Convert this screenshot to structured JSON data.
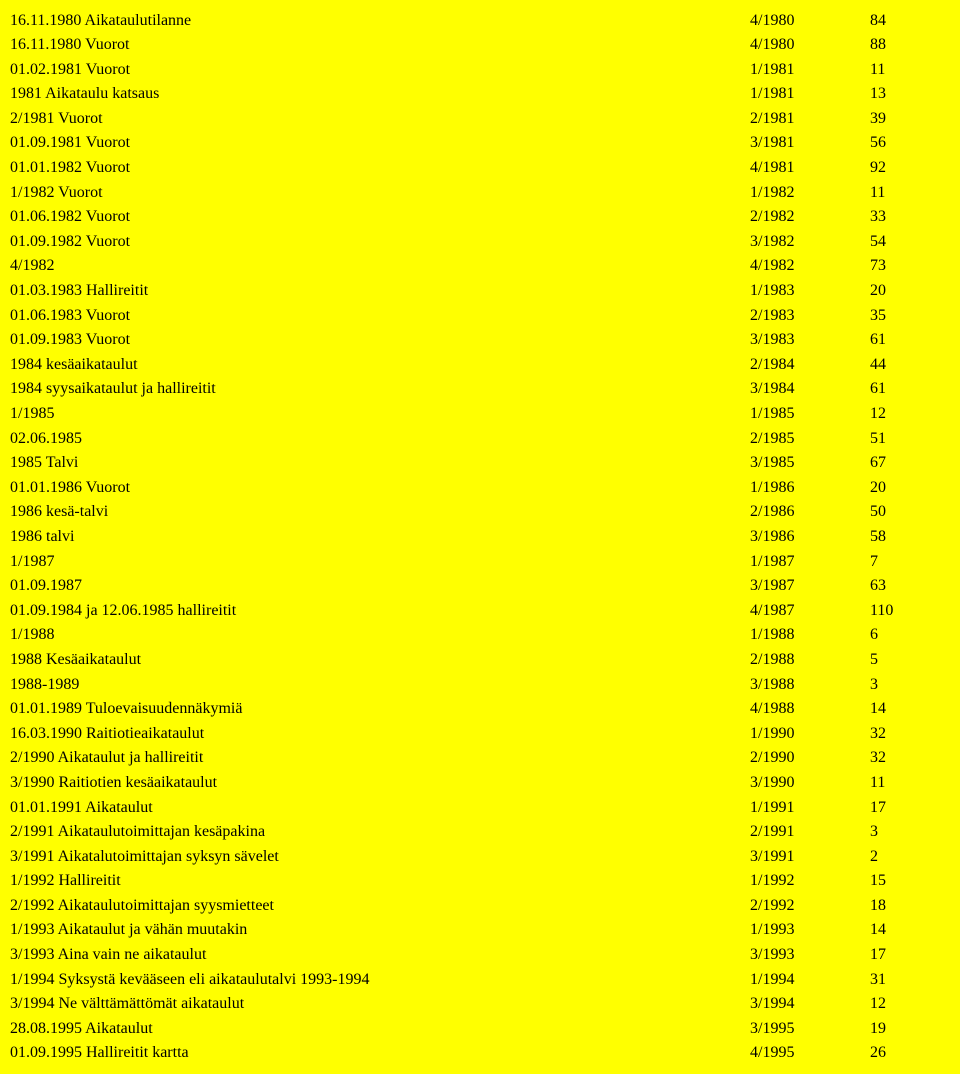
{
  "rows": [
    {
      "desc": "16.11.1980 Aikataulutilanne",
      "ref": "4/1980",
      "page": "84"
    },
    {
      "desc": "16.11.1980 Vuorot",
      "ref": "4/1980",
      "page": "88"
    },
    {
      "desc": "01.02.1981 Vuorot",
      "ref": "1/1981",
      "page": "11"
    },
    {
      "desc": "1981 Aikataulu katsaus",
      "ref": "1/1981",
      "page": "13"
    },
    {
      "desc": "2/1981 Vuorot",
      "ref": "2/1981",
      "page": "39"
    },
    {
      "desc": "01.09.1981 Vuorot",
      "ref": "3/1981",
      "page": "56"
    },
    {
      "desc": "01.01.1982 Vuorot",
      "ref": "4/1981",
      "page": "92"
    },
    {
      "desc": "1/1982 Vuorot",
      "ref": "1/1982",
      "page": "11"
    },
    {
      "desc": "01.06.1982 Vuorot",
      "ref": "2/1982",
      "page": "33"
    },
    {
      "desc": "01.09.1982 Vuorot",
      "ref": "3/1982",
      "page": "54"
    },
    {
      "desc": "4/1982",
      "ref": "4/1982",
      "page": "73"
    },
    {
      "desc": "01.03.1983 Hallireitit",
      "ref": "1/1983",
      "page": "20"
    },
    {
      "desc": "01.06.1983 Vuorot",
      "ref": "2/1983",
      "page": "35"
    },
    {
      "desc": "01.09.1983 Vuorot",
      "ref": "3/1983",
      "page": "61"
    },
    {
      "desc": "1984 kesäaikataulut",
      "ref": "2/1984",
      "page": "44"
    },
    {
      "desc": "1984 syysaikataulut ja hallireitit",
      "ref": "3/1984",
      "page": "61"
    },
    {
      "desc": "1/1985",
      "ref": "1/1985",
      "page": "12"
    },
    {
      "desc": "02.06.1985",
      "ref": "2/1985",
      "page": "51"
    },
    {
      "desc": "1985 Talvi",
      "ref": "3/1985",
      "page": "67"
    },
    {
      "desc": "01.01.1986 Vuorot",
      "ref": "1/1986",
      "page": "20"
    },
    {
      "desc": "1986 kesä-talvi",
      "ref": "2/1986",
      "page": "50"
    },
    {
      "desc": "1986 talvi",
      "ref": "3/1986",
      "page": "58"
    },
    {
      "desc": "1/1987",
      "ref": "1/1987",
      "page": "7"
    },
    {
      "desc": "01.09.1987",
      "ref": "3/1987",
      "page": "63"
    },
    {
      "desc": "01.09.1984 ja 12.06.1985 hallireitit",
      "ref": "4/1987",
      "page": "110"
    },
    {
      "desc": "1/1988",
      "ref": "1/1988",
      "page": "6"
    },
    {
      "desc": "1988 Kesäaikataulut",
      "ref": "2/1988",
      "page": "5"
    },
    {
      "desc": "1988-1989",
      "ref": "3/1988",
      "page": "3"
    },
    {
      "desc": "01.01.1989 Tuloevaisuudennäkymiä",
      "ref": "4/1988",
      "page": "14"
    },
    {
      "desc": "16.03.1990 Raitiotieaikataulut",
      "ref": "1/1990",
      "page": "32"
    },
    {
      "desc": "2/1990 Aikataulut ja hallireitit",
      "ref": "2/1990",
      "page": "32"
    },
    {
      "desc": "3/1990 Raitiotien kesäaikataulut",
      "ref": "3/1990",
      "page": "11"
    },
    {
      "desc": "01.01.1991 Aikataulut",
      "ref": "1/1991",
      "page": "17"
    },
    {
      "desc": "2/1991 Aikataulutoimittajan kesäpakina",
      "ref": "2/1991",
      "page": "3"
    },
    {
      "desc": "3/1991 Aikatalutoimittajan syksyn sävelet",
      "ref": "3/1991",
      "page": "2"
    },
    {
      "desc": "1/1992 Hallireitit",
      "ref": "1/1992",
      "page": "15"
    },
    {
      "desc": "2/1992 Aikataulutoimittajan syysmietteet",
      "ref": "2/1992",
      "page": "18"
    },
    {
      "desc": "1/1993 Aikataulut ja vähän muutakin",
      "ref": "1/1993",
      "page": "14"
    },
    {
      "desc": "3/1993 Aina vain ne aikataulut",
      "ref": "3/1993",
      "page": "17"
    },
    {
      "desc": "1/1994 Syksystä kevääseen eli aikataulutalvi 1993-1994",
      "ref": "1/1994",
      "page": "31"
    },
    {
      "desc": "3/1994 Ne välttämättömät aikataulut",
      "ref": "3/1994",
      "page": "12"
    },
    {
      "desc": "28.08.1995 Aikataulut",
      "ref": "3/1995",
      "page": "19"
    },
    {
      "desc": "01.09.1995 Hallireitit kartta",
      "ref": "4/1995",
      "page": "26"
    }
  ]
}
